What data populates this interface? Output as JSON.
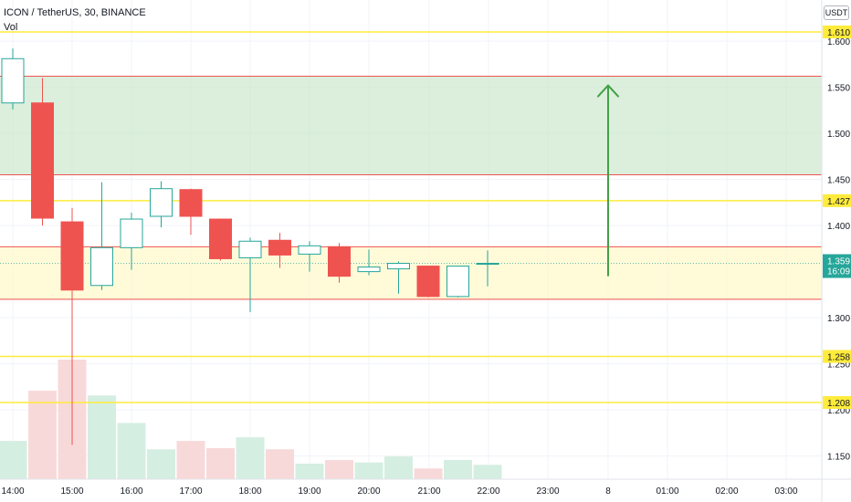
{
  "legend": {
    "title": "ICON / TetherUS, 30, BINANCE",
    "vol": "Vol"
  },
  "currency": "USDT",
  "colors": {
    "up": "#26a69a",
    "down": "#ef5350",
    "level_line": "#ffeb3b",
    "zone_line": "#ef5350",
    "green_zone": "#c8e6c9",
    "yellow_zone": "#fff9c4",
    "arrow": "#43a047",
    "vol_up": "#d5eee2",
    "vol_down": "#f8d9d9"
  },
  "chart_data": {
    "type": "candlestick",
    "symbol": "ICON / TetherUS",
    "interval": "30",
    "exchange": "BINANCE",
    "y_axis_ticks": [
      1.6,
      1.55,
      1.5,
      1.45,
      1.4,
      1.3,
      1.25,
      1.2,
      1.15
    ],
    "y_axis_tick_labels": [
      "1.600",
      "1.550",
      "1.500",
      "1.450",
      "1.400",
      "1.300",
      "1.250",
      "1.200",
      "1.150"
    ],
    "ylim": [
      1.125,
      1.62
    ],
    "x_axis_labels": [
      "14:00",
      "15:00",
      "16:00",
      "17:00",
      "18:00",
      "19:00",
      "20:00",
      "21:00",
      "22:00",
      "23:00",
      "8",
      "01:00",
      "02:00",
      "03:00"
    ],
    "candles": [
      {
        "o": 1.533,
        "h": 1.592,
        "l": 1.526,
        "c": 1.581
      },
      {
        "o": 1.533,
        "h": 1.56,
        "l": 1.4,
        "c": 1.408
      },
      {
        "o": 1.404,
        "h": 1.419,
        "l": 1.162,
        "c": 1.33
      },
      {
        "o": 1.335,
        "h": 1.447,
        "l": 1.33,
        "c": 1.376
      },
      {
        "o": 1.376,
        "h": 1.414,
        "l": 1.352,
        "c": 1.407
      },
      {
        "o": 1.41,
        "h": 1.448,
        "l": 1.398,
        "c": 1.44
      },
      {
        "o": 1.439,
        "h": 1.44,
        "l": 1.39,
        "c": 1.41
      },
      {
        "o": 1.407,
        "h": 1.407,
        "l": 1.362,
        "c": 1.364
      },
      {
        "o": 1.365,
        "h": 1.387,
        "l": 1.306,
        "c": 1.383
      },
      {
        "o": 1.384,
        "h": 1.392,
        "l": 1.354,
        "c": 1.368
      },
      {
        "o": 1.369,
        "h": 1.383,
        "l": 1.35,
        "c": 1.378
      },
      {
        "o": 1.377,
        "h": 1.381,
        "l": 1.338,
        "c": 1.345
      },
      {
        "o": 1.35,
        "h": 1.374,
        "l": 1.346,
        "c": 1.355
      },
      {
        "o": 1.353,
        "h": 1.361,
        "l": 1.326,
        "c": 1.359
      },
      {
        "o": 1.356,
        "h": 1.355,
        "l": 1.322,
        "c": 1.323
      },
      {
        "o": 1.323,
        "h": 1.356,
        "l": 1.322,
        "c": 1.356
      },
      {
        "o": 1.358,
        "h": 1.373,
        "l": 1.334,
        "c": 1.359
      }
    ],
    "volume": {
      "values": [
        32,
        74,
        100,
        70,
        47,
        25,
        32,
        26,
        35,
        25,
        13,
        16,
        14,
        19,
        9,
        16,
        12
      ],
      "direction": [
        "up",
        "down",
        "down",
        "up",
        "up",
        "up",
        "down",
        "down",
        "up",
        "down",
        "up",
        "down",
        "up",
        "up",
        "down",
        "up",
        "up"
      ]
    },
    "horizontal_levels": [
      {
        "value": 1.61,
        "label": "1.610"
      },
      {
        "value": 1.427,
        "label": "1.427"
      },
      {
        "value": 1.258,
        "label": "1.258"
      },
      {
        "value": 1.208,
        "label": "1.208"
      }
    ],
    "zones": [
      {
        "name": "target-zone",
        "top": 1.562,
        "bottom": 1.455
      },
      {
        "name": "entry-zone",
        "top": 1.377,
        "bottom": 1.32
      }
    ],
    "arrow": {
      "from": 1.345,
      "to": 1.552
    },
    "last_price": {
      "value": "1.359",
      "countdown": "16:09"
    },
    "grid": true
  }
}
